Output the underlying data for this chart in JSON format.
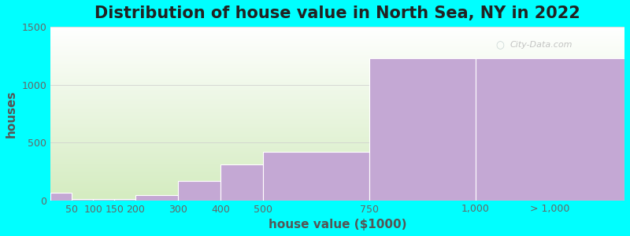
{
  "title": "Distribution of house value in North Sea, NY in 2022",
  "xlabel": "house value ($1000)",
  "ylabel": "houses",
  "background_color": "#00FFFF",
  "plot_bg_gradient_top": "#ffffff",
  "plot_bg_gradient_bottom": "#d4ecc0",
  "bar_color": "#c4a8d4",
  "bar_edge_color": "#ffffff",
  "ylim": [
    0,
    1500
  ],
  "yticks": [
    0,
    500,
    1000,
    1500
  ],
  "grid_color": "#cccccc",
  "watermark_text": "City-Data.com",
  "title_fontsize": 15,
  "axis_label_fontsize": 11,
  "tick_fontsize": 9,
  "bar_left_edges": [
    0,
    50,
    100,
    150,
    200,
    300,
    400,
    500,
    750,
    1000
  ],
  "bar_right_edges": [
    50,
    100,
    150,
    200,
    300,
    400,
    500,
    750,
    1000,
    1350
  ],
  "values": [
    65,
    10,
    8,
    10,
    45,
    165,
    310,
    420,
    1230,
    1230
  ],
  "xtick_positions": [
    50,
    100,
    150,
    200,
    300,
    400,
    500,
    750,
    1000,
    1175
  ],
  "xtick_labels": [
    "50",
    "100",
    "150",
    "200",
    "300",
    "400",
    "500",
    "750",
    "1,000",
    "> 1,000"
  ]
}
